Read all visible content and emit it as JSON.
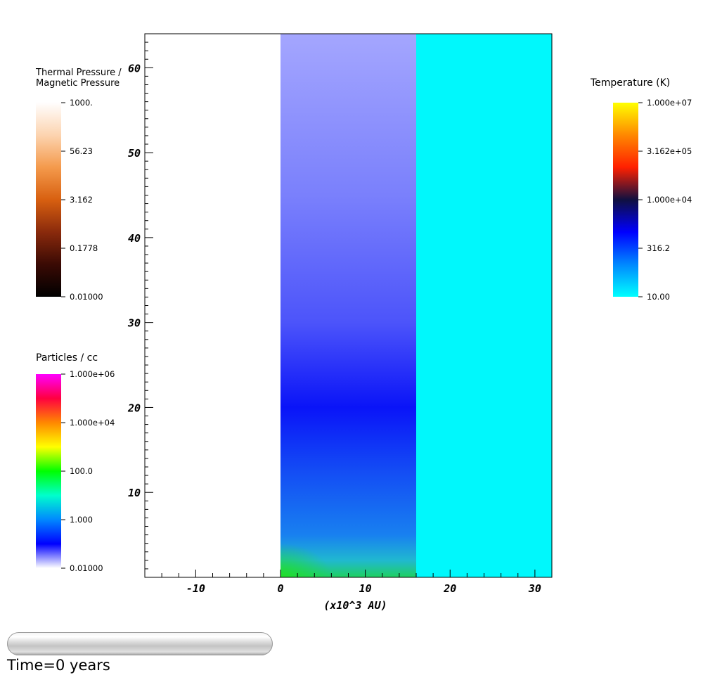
{
  "chart_data": {
    "type": "heatmap",
    "xlabel": "(x10^3 AU)",
    "x_ticks": [
      "-10",
      "0",
      "10",
      "20",
      "30"
    ],
    "y_ticks": [
      "10",
      "20",
      "30",
      "40",
      "50",
      "60"
    ],
    "xlim": [
      -16,
      32
    ],
    "ylim": [
      0,
      64
    ],
    "regions": [
      {
        "x_range": [
          -16,
          0
        ],
        "fill": "white",
        "color": "#ffffff"
      },
      {
        "x_range": [
          0,
          16
        ],
        "fill": "vertical gradient",
        "stops": [
          {
            "y": 0,
            "color": "#1fd060"
          },
          {
            "y": 2,
            "color": "#20b8d0"
          },
          {
            "y": 5,
            "color": "#1880f0"
          },
          {
            "y": 12,
            "color": "#1450f4"
          },
          {
            "y": 20,
            "color": "#0a14f8"
          },
          {
            "y": 30,
            "color": "#4c54fa"
          },
          {
            "y": 45,
            "color": "#7a80fc"
          },
          {
            "y": 64,
            "color": "#a4a6fe"
          }
        ]
      },
      {
        "x_range": [
          16,
          32
        ],
        "fill": "solid",
        "color": "#00f8fc"
      }
    ],
    "colorbars": [
      {
        "title": [
          "Thermal Pressure /",
          "Magnetic Pressure"
        ],
        "labels": [
          "1000.",
          "56.23",
          "3.162",
          "0.1778",
          "0.01000"
        ],
        "gradient": [
          "#fffefe",
          "#fcd4b0",
          "#f49a4c",
          "#d86010",
          "#8a2a0c",
          "#3a0a04",
          "#000000"
        ]
      },
      {
        "title": [
          "Particles / cc"
        ],
        "labels": [
          "1.000e+06",
          "1.000e+04",
          "100.0",
          "1.000",
          "0.01000"
        ],
        "gradient": [
          "#ff00ff",
          "#ff0040",
          "#ff8800",
          "#ffff00",
          "#00ff00",
          "#00ffcc",
          "#0088ff",
          "#0000ff",
          "#ffffff"
        ]
      },
      {
        "title": [
          "Temperature (K)"
        ],
        "labels": [
          "1.000e+07",
          "3.162e+05",
          "1.000e+04",
          "316.2",
          "10.00"
        ],
        "gradient": [
          "#ffff00",
          "#ff8800",
          "#ff2000",
          "#101040",
          "#0000ff",
          "#0088ff",
          "#00ffff"
        ]
      }
    ]
  },
  "time_label": "Time=0 years"
}
